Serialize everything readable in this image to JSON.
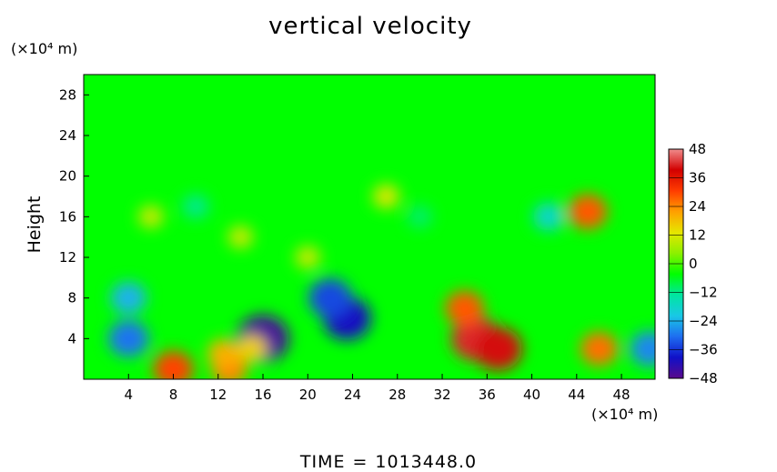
{
  "chart_data": {
    "type": "heatmap",
    "title": "vertical velocity",
    "xlabel": "",
    "ylabel": "Height",
    "x_unit": "(×10⁴ m)",
    "y_unit": "(×10⁴ m)",
    "xlim": [
      0,
      51
    ],
    "ylim": [
      0,
      30
    ],
    "x_ticks": [
      4,
      8,
      12,
      16,
      20,
      24,
      28,
      32,
      36,
      40,
      44,
      48
    ],
    "y_ticks": [
      4,
      8,
      12,
      16,
      20,
      24,
      28
    ],
    "colorbar": {
      "ticks": [
        48,
        36,
        24,
        12,
        0,
        -12,
        -24,
        -36,
        -48
      ],
      "range": [
        -48,
        48
      ]
    },
    "colormap": [
      "#5a0a8c",
      "#1010c8",
      "#1e6ef0",
      "#19c8e6",
      "#00e6a0",
      "#00ff00",
      "#8cf000",
      "#e6e600",
      "#ffa000",
      "#ff3c00",
      "#d20000",
      "#f08c8c"
    ],
    "features": [
      {
        "x": 35,
        "y": 4,
        "value": 42
      },
      {
        "x": 37,
        "y": 3,
        "value": 40
      },
      {
        "x": 34,
        "y": 7,
        "value": 28
      },
      {
        "x": 16,
        "y": 4,
        "value": -46
      },
      {
        "x": 23.5,
        "y": 6,
        "value": -40
      },
      {
        "x": 22,
        "y": 8,
        "value": -34
      },
      {
        "x": 4,
        "y": 4,
        "value": -30
      },
      {
        "x": 4,
        "y": 8,
        "value": -24
      },
      {
        "x": 8,
        "y": 1,
        "value": 30
      },
      {
        "x": 13,
        "y": 1,
        "value": 24
      },
      {
        "x": 12.5,
        "y": 2.5,
        "value": 20
      },
      {
        "x": 15,
        "y": 3,
        "value": 16
      },
      {
        "x": 45,
        "y": 16.5,
        "value": 28
      },
      {
        "x": 46,
        "y": 3,
        "value": 26
      },
      {
        "x": 50.5,
        "y": 3,
        "value": -28
      },
      {
        "x": 41.5,
        "y": 16,
        "value": -18
      },
      {
        "x": 20,
        "y": 12,
        "value": 10
      },
      {
        "x": 14,
        "y": 14,
        "value": 10
      },
      {
        "x": 10,
        "y": 17,
        "value": -12
      },
      {
        "x": 6,
        "y": 16,
        "value": 10
      },
      {
        "x": 30,
        "y": 16,
        "value": -10
      },
      {
        "x": 27,
        "y": 18,
        "value": 12
      }
    ]
  },
  "time_label": {
    "name": "TIME",
    "equals": "=",
    "value": "1013448.0"
  }
}
